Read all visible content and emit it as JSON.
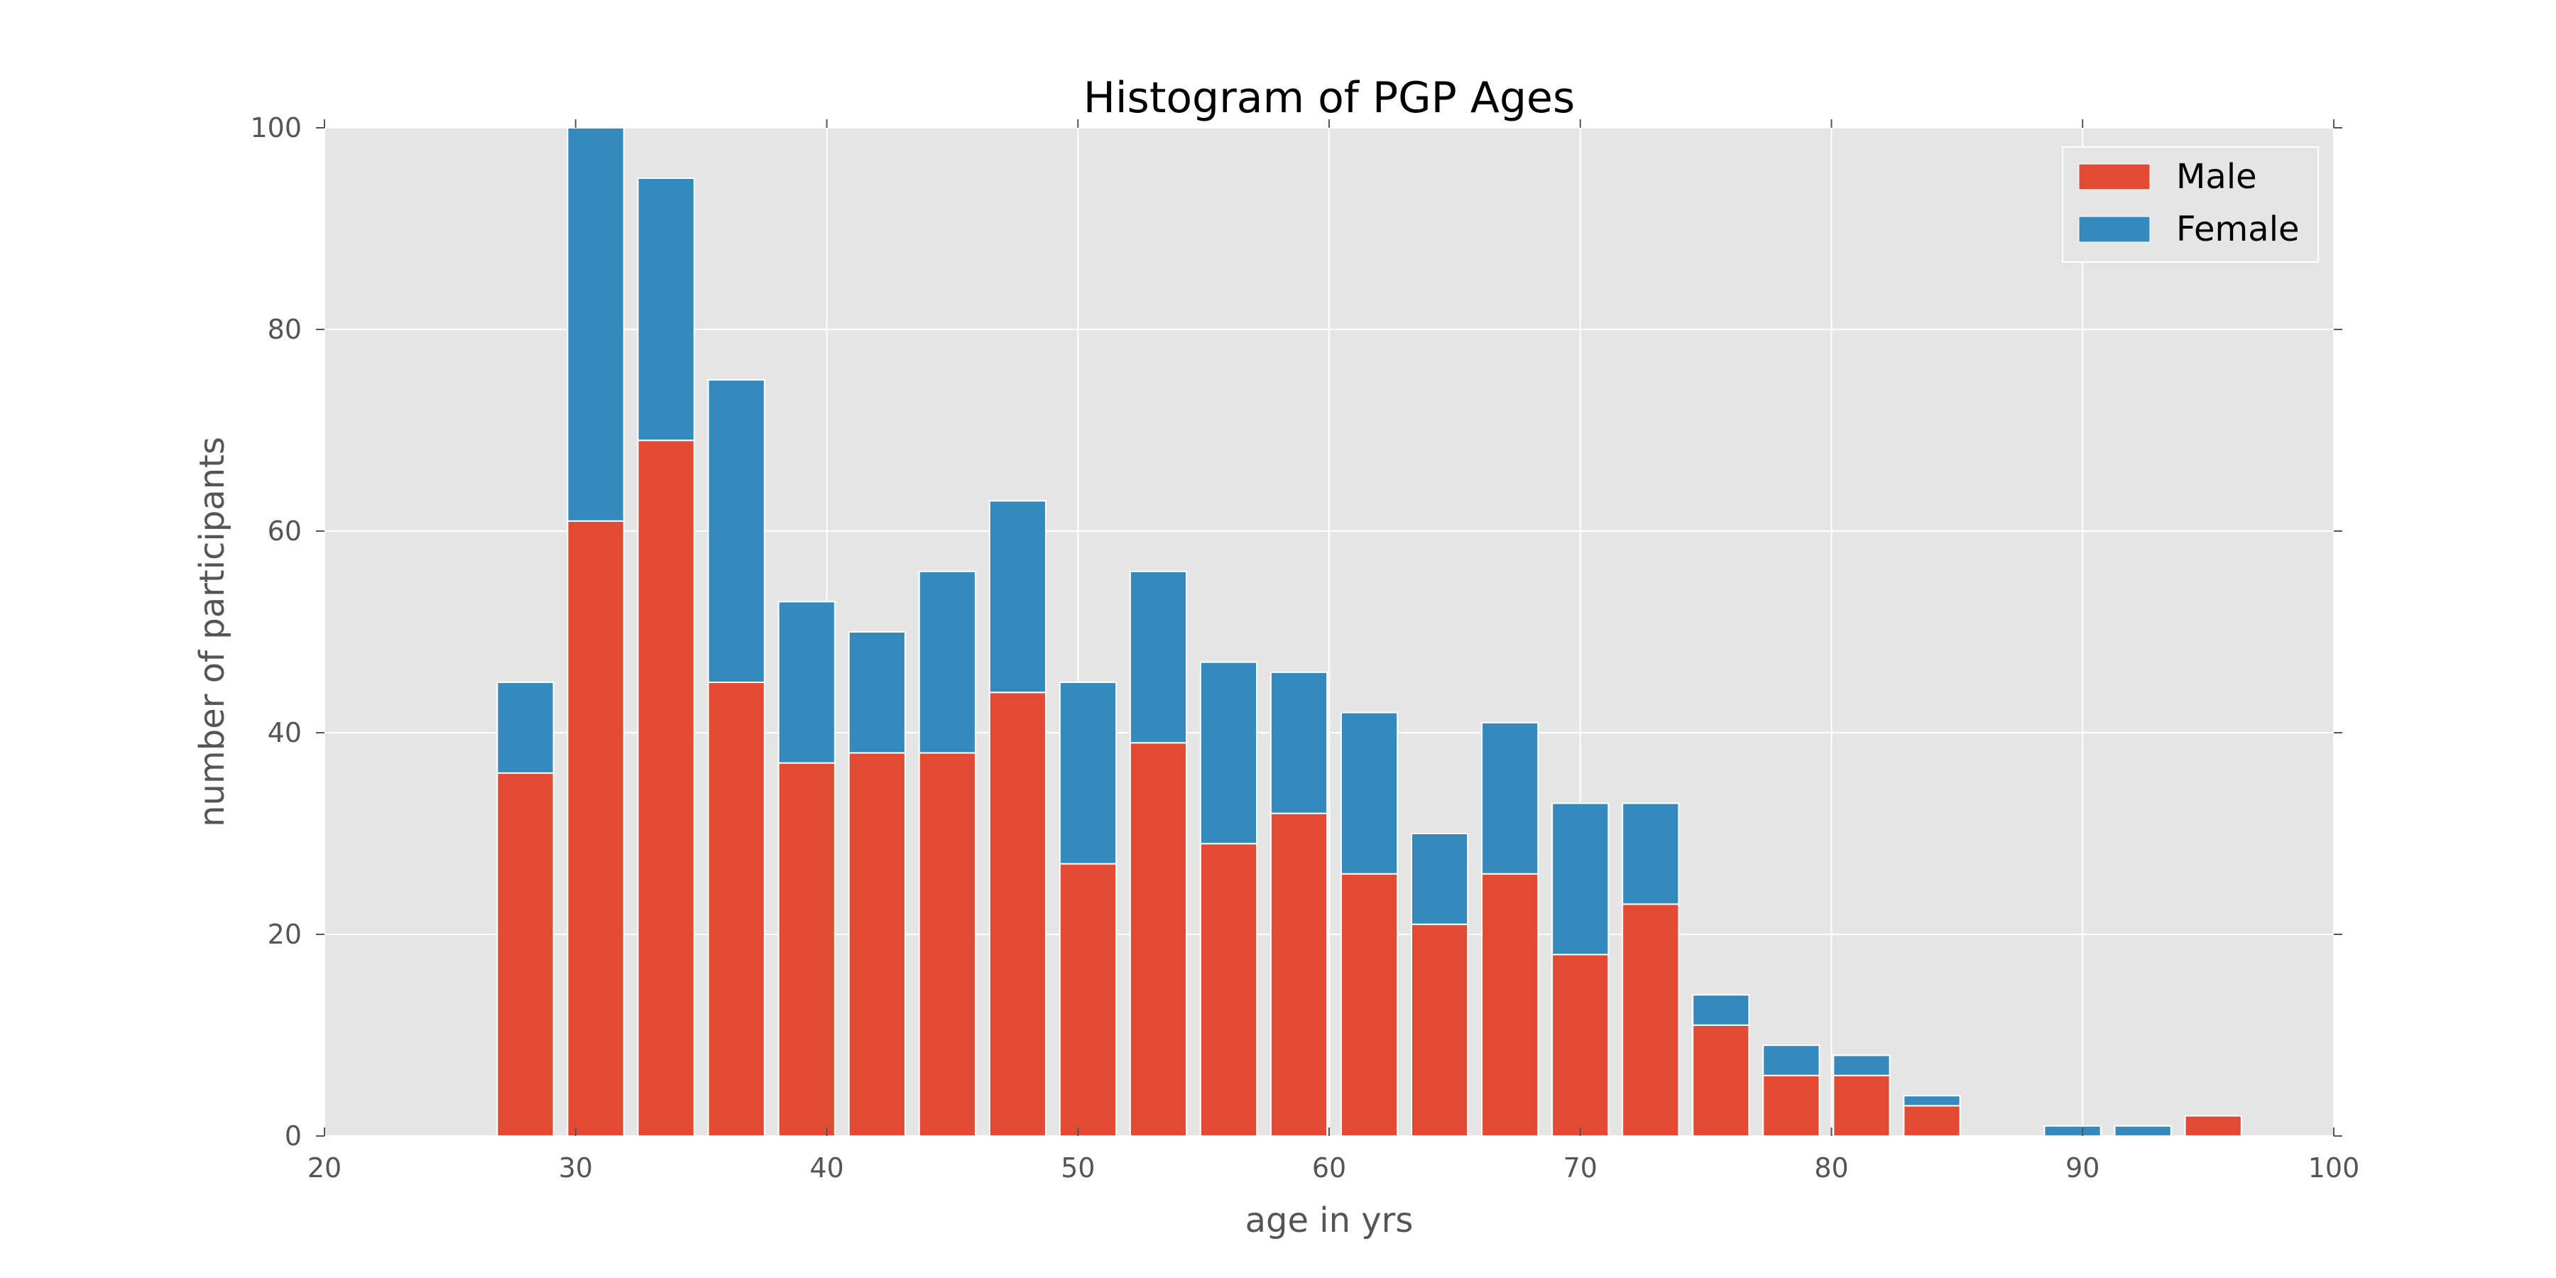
{
  "chart_data": {
    "type": "bar",
    "stacked": true,
    "title": "Histogram of PGP Ages",
    "xlabel": "age in yrs",
    "ylabel": "number of participants",
    "xlim": [
      20,
      100
    ],
    "ylim": [
      0,
      100
    ],
    "x_ticks": [
      20,
      30,
      40,
      50,
      60,
      70,
      80,
      90,
      100
    ],
    "y_ticks": [
      0,
      20,
      40,
      60,
      80,
      100
    ],
    "bin_width": 2.8,
    "x": [
      28,
      30.8,
      33.6,
      36.4,
      39.2,
      42,
      44.8,
      47.6,
      50.4,
      53.2,
      56,
      58.8,
      61.6,
      64.4,
      67.2,
      70,
      72.8,
      75.6,
      78.4,
      81.2,
      84,
      86.8,
      89.6,
      92.4,
      95.2
    ],
    "series": [
      {
        "name": "Male",
        "color": "#e24a33",
        "values": [
          36,
          61,
          69,
          45,
          37,
          38,
          38,
          44,
          27,
          39,
          29,
          32,
          26,
          21,
          26,
          18,
          23,
          11,
          6,
          6,
          3,
          0,
          0,
          0,
          2
        ]
      },
      {
        "name": "Female",
        "color": "#348abd",
        "values": [
          9,
          39,
          26,
          30,
          16,
          12,
          18,
          19,
          18,
          17,
          18,
          14,
          16,
          9,
          15,
          15,
          10,
          3,
          3,
          2,
          1,
          0,
          1,
          1,
          0
        ]
      }
    ],
    "legend": {
      "position": "top-right",
      "entries": [
        "Male",
        "Female"
      ]
    },
    "grid": true,
    "background": "#e5e5e5",
    "grid_color": "#ffffff"
  }
}
